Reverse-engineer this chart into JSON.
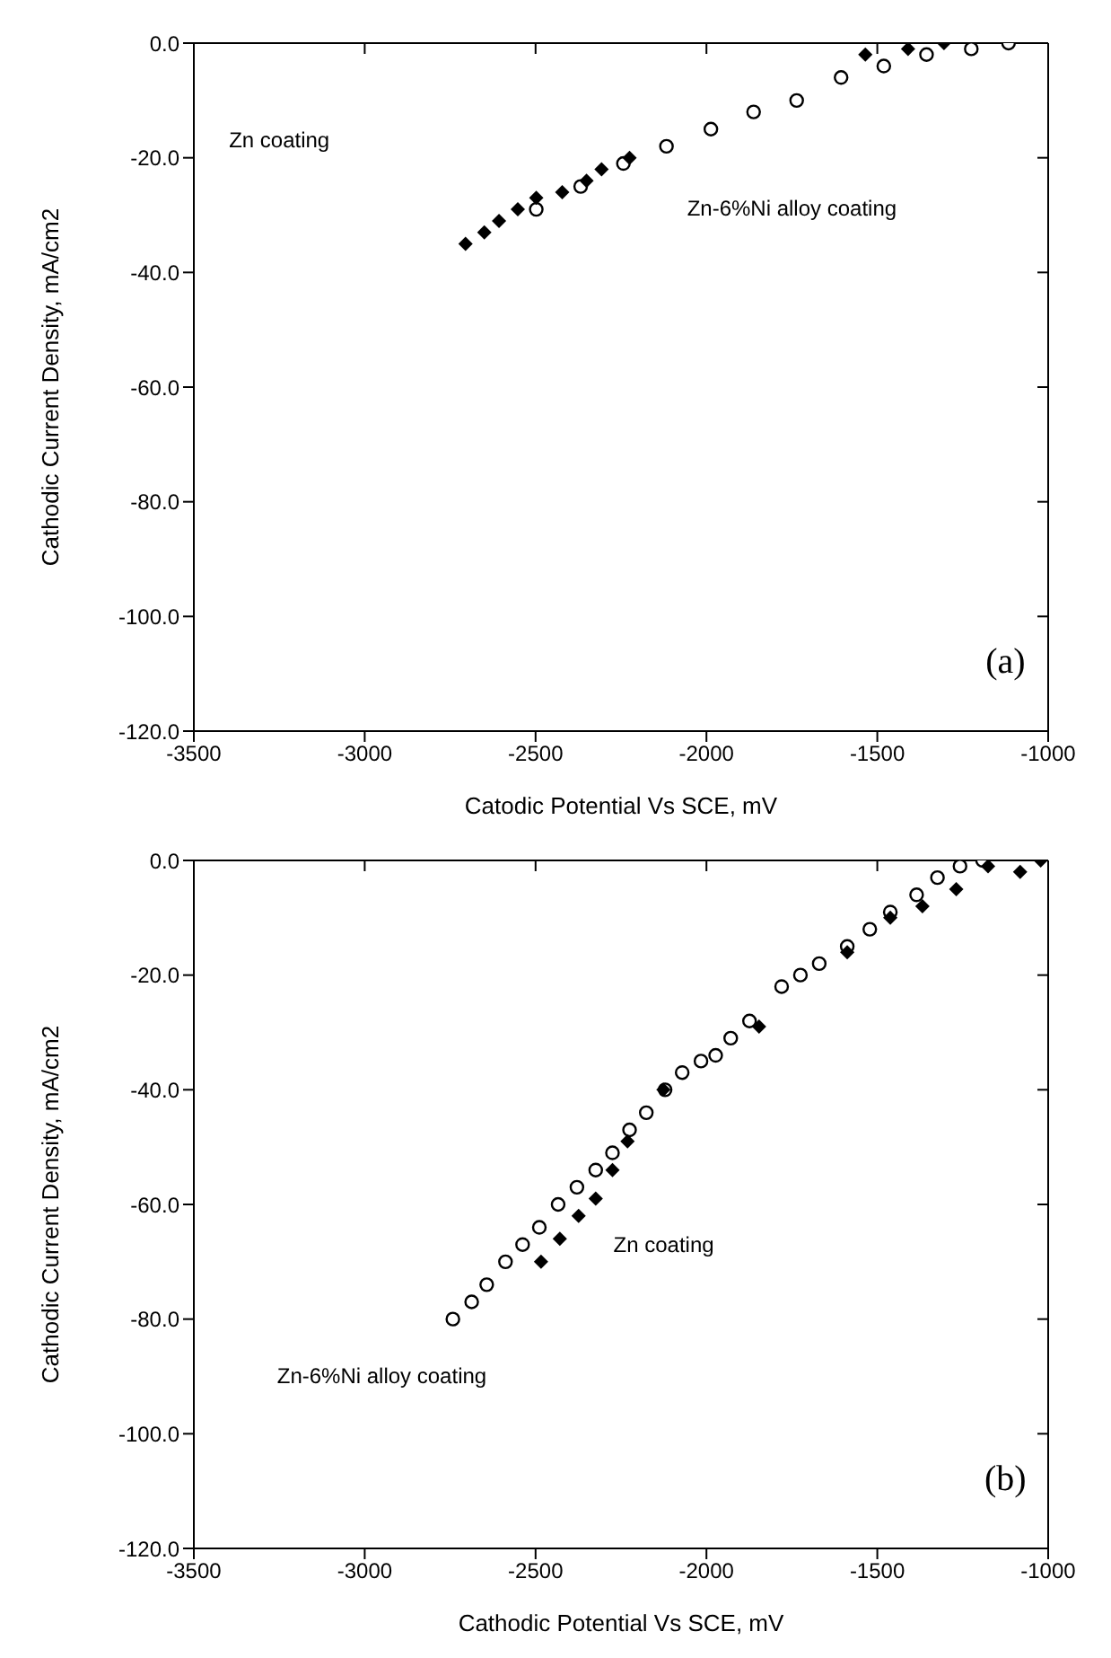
{
  "chart_data": [
    {
      "type": "scatter",
      "xlabel": "Catodic Potential Vs SCE, mV",
      "ylabel": "Cathodic Current Density, mA/cm2",
      "xlim": [
        -3500,
        -1000
      ],
      "xticks": [
        -3500,
        -3000,
        -2500,
        -2000,
        -1500,
        -1000
      ],
      "ylim": [
        -120,
        0
      ],
      "yticks": [
        {
          "value": 0,
          "label": "0.0"
        },
        {
          "value": -20,
          "label": "-20.0"
        },
        {
          "value": -40,
          "label": "-40.0"
        },
        {
          "value": -60,
          "label": "-60.0"
        },
        {
          "value": -80,
          "label": "-80.0"
        },
        {
          "value": -100,
          "label": "-100.0"
        },
        {
          "value": -120,
          "label": "-120.0"
        }
      ],
      "legend": false,
      "series": [
        {
          "color": "#000000",
          "marker": "diamond",
          "x": [
            -2705,
            -2650,
            -2607,
            -2552,
            -2498,
            -2422,
            -2351,
            -2307,
            -2225,
            -1535,
            -1410,
            -1305
          ],
          "values": [
            -35,
            -33,
            -31,
            -29,
            -27,
            -26,
            -24,
            -22,
            -20,
            -2,
            -1,
            0
          ]
        },
        {
          "color": "#000000",
          "marker": "circle",
          "x": [
            -2498,
            -2368,
            -2243,
            -2117,
            -1987,
            -1862,
            -1736,
            -1606,
            -1481,
            -1356,
            -1225,
            -1116
          ],
          "values": [
            -29,
            -25,
            -21,
            -18,
            -15,
            -12,
            -10,
            -6,
            -4,
            -2,
            -1,
            0
          ]
        }
      ],
      "annotations": [
        "Zn coating",
        "Zn-6%Ni alloy coating",
        "(a)"
      ]
    },
    {
      "type": "scatter",
      "xlabel": "Cathodic Potential Vs SCE, mV",
      "ylabel": "Cathodic Current Density, mA/cm2",
      "xlim": [
        -3500,
        -1000
      ],
      "xticks": [
        -3500,
        -3000,
        -2500,
        -2000,
        -1500,
        -1000
      ],
      "ylim": [
        -120,
        0
      ],
      "yticks": [
        {
          "value": 0,
          "label": "0.0"
        },
        {
          "value": -20,
          "label": "-20.0"
        },
        {
          "value": -40,
          "label": "-40.0"
        },
        {
          "value": -60,
          "label": "-60.0"
        },
        {
          "value": -80,
          "label": "-80.0"
        },
        {
          "value": -100,
          "label": "-100.0"
        },
        {
          "value": -120,
          "label": "-120.0"
        }
      ],
      "legend": false,
      "series": [
        {
          "color": "#000000",
          "marker": "diamond",
          "x": [
            -2484,
            -2429,
            -2374,
            -2324,
            -2275,
            -2231,
            -2126,
            -1846,
            -1588,
            -1462,
            -1368,
            -1269,
            -1176,
            -1082,
            -1022
          ],
          "values": [
            -70,
            -66,
            -62,
            -59,
            -54,
            -49,
            -40,
            -29,
            -16,
            -10,
            -8,
            -5,
            -1,
            -2,
            0
          ]
        },
        {
          "color": "#000000",
          "marker": "circle",
          "x": [
            -2742,
            -2687,
            -2643,
            -2588,
            -2538,
            -2489,
            -2434,
            -2379,
            -2324,
            -2275,
            -2225,
            -2176,
            -2121,
            -2071,
            -2016,
            -1973,
            -1929,
            -1874,
            -1780,
            -1725,
            -1670,
            -1588,
            -1522,
            -1462,
            -1385,
            -1324,
            -1258,
            -1192
          ],
          "values": [
            -80,
            -77,
            -74,
            -70,
            -67,
            -64,
            -60,
            -57,
            -54,
            -51,
            -47,
            -44,
            -40,
            -37,
            -35,
            -34,
            -31,
            -28,
            -22,
            -20,
            -18,
            -15,
            -12,
            -9,
            -6,
            -3,
            -1,
            0
          ]
        }
      ],
      "annotations": [
        "Zn coating",
        "Zn-6%Ni alloy coating",
        "(b)"
      ]
    }
  ]
}
